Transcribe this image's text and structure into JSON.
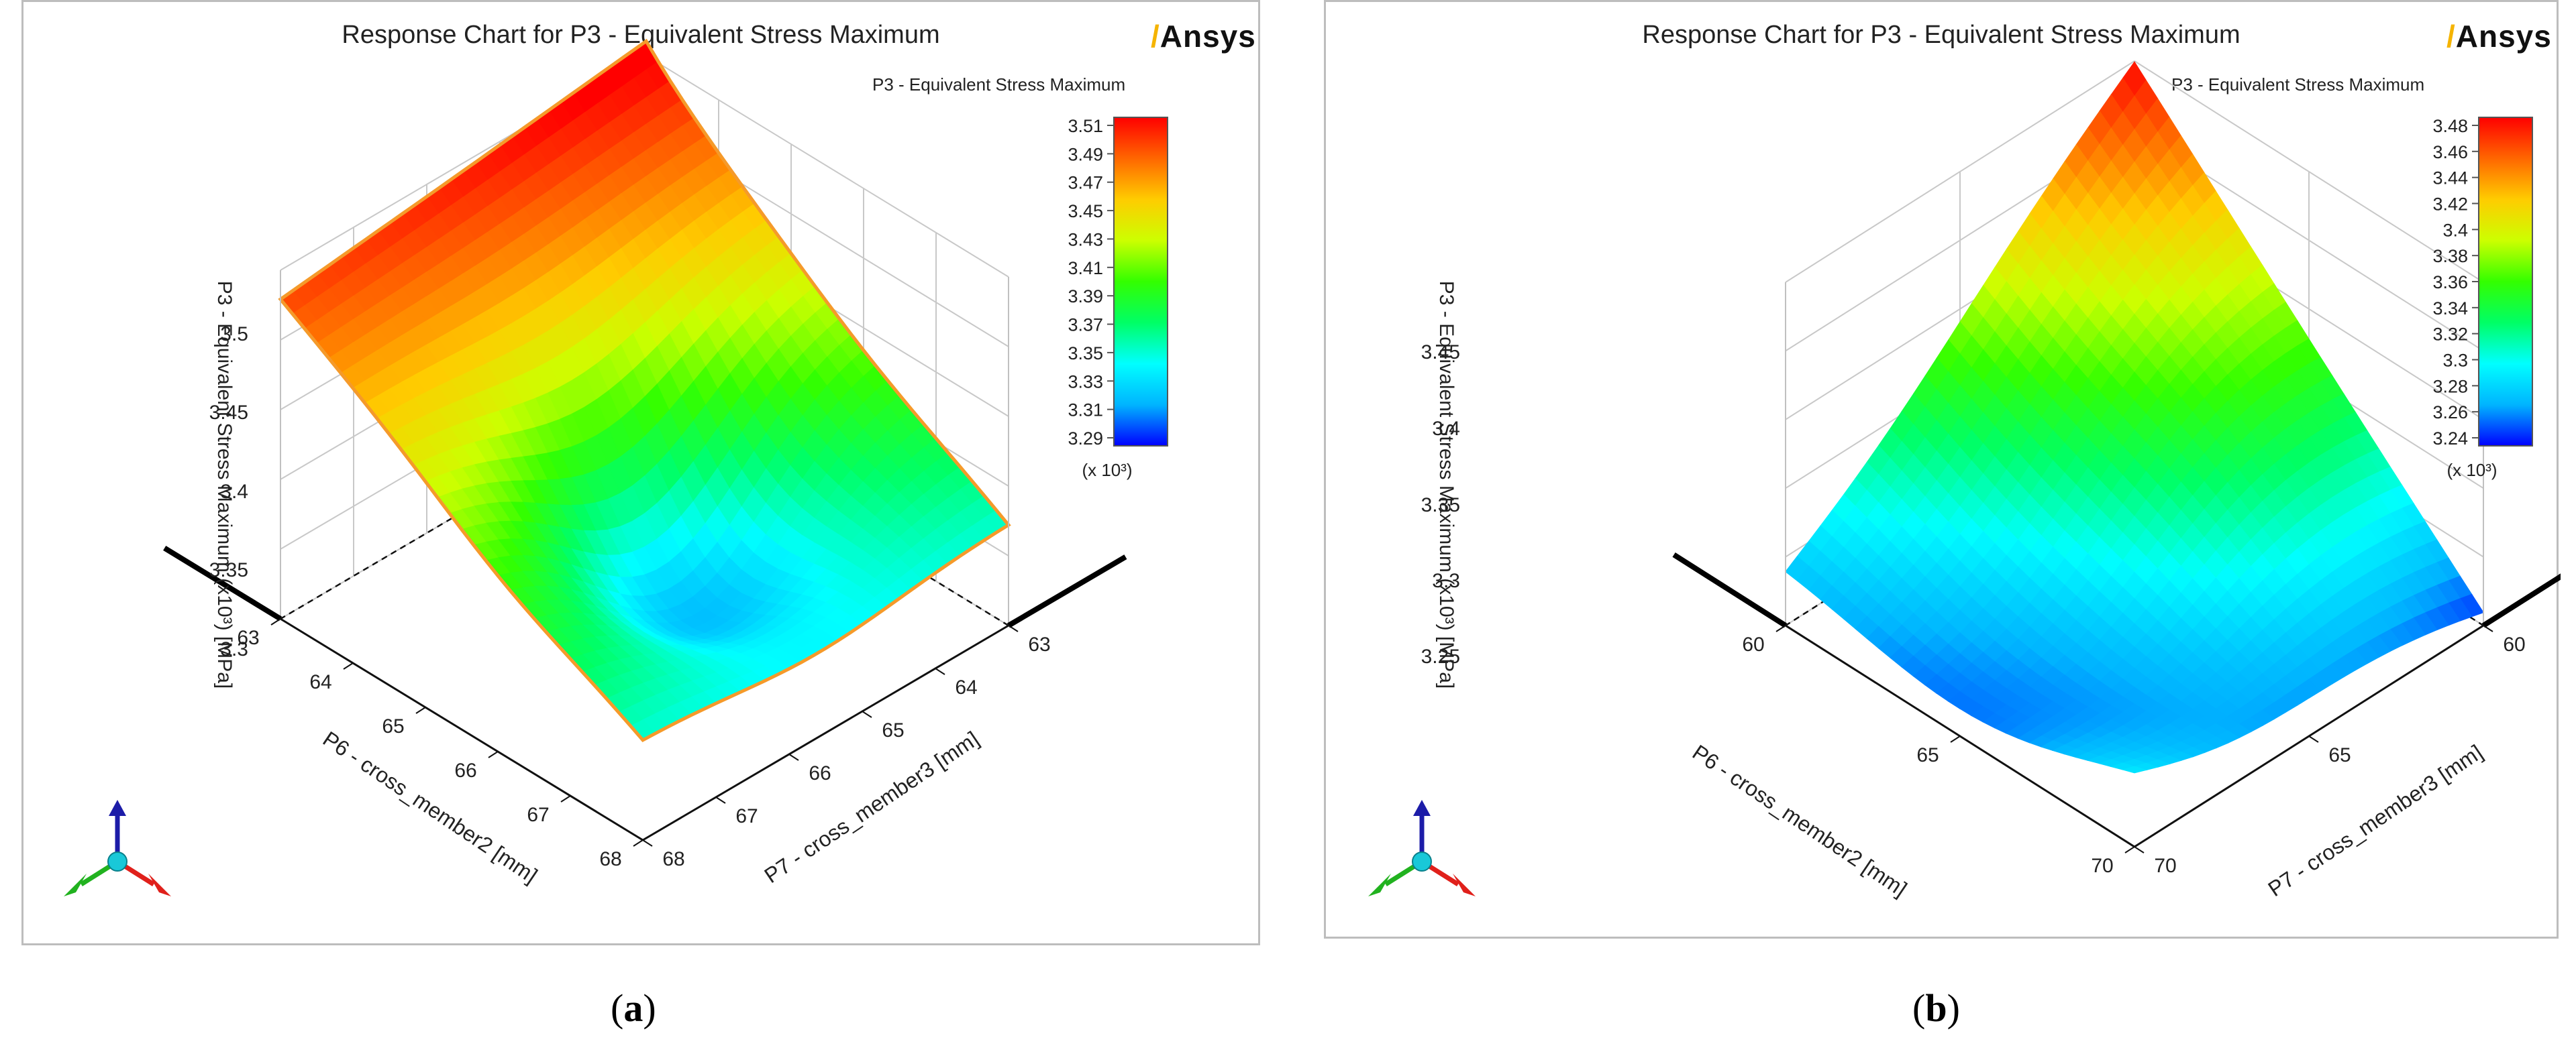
{
  "chart_data": [
    {
      "id": "a",
      "type": "surface",
      "caption_letter": "a",
      "title": "Response Chart for P3 - Equivalent Stress Maximum",
      "logo": "Ansys",
      "colorbar_title": "P3 - Equivalent Stress Maximum",
      "colorbar_ticks": [
        "3.51",
        "3.49",
        "3.47",
        "3.45",
        "3.43",
        "3.41",
        "3.39",
        "3.37",
        "3.35",
        "3.33",
        "3.31",
        "3.29"
      ],
      "colorbar_multiplier": "(x 10³)",
      "zlabel": "P3 - Equivalent Stress Maximum  (x10³)  [MPa]",
      "z_ticks": [
        "3.5",
        "3.45",
        "3.4",
        "3.35",
        "3.3"
      ],
      "xlabel": "P6 - cross_member2  [mm]",
      "x_ticks": [
        "63",
        "64",
        "65",
        "66",
        "67",
        "68"
      ],
      "ylabel": "P7 - cross_member3  [mm]",
      "y_ticks": [
        "63",
        "64",
        "65",
        "66",
        "67",
        "68"
      ],
      "zlim": [
        3.28,
        3.52
      ],
      "surface_corners": {
        "x63_y68": 3.5,
        "x63_y63": 3.51,
        "x68_y63": 3.35,
        "x68_y68": 3.35
      },
      "surface_minimum": 3.29
    },
    {
      "id": "b",
      "type": "surface",
      "caption_letter": "b",
      "title": "Response Chart for P3 - Equivalent Stress Maximum",
      "logo": "Ansys",
      "colorbar_title": "P3 - Equivalent Stress Maximum",
      "colorbar_ticks": [
        "3.48",
        "3.46",
        "3.44",
        "3.42",
        "3.4",
        "3.38",
        "3.36",
        "3.34",
        "3.32",
        "3.3",
        "3.28",
        "3.26",
        "3.24"
      ],
      "colorbar_multiplier": "(x 10³)",
      "zlabel": "P3 - Equivalent Stress Maximum  (x10³)  [MPa]",
      "z_ticks": [
        "3.45",
        "3.4",
        "3.35",
        "3.3",
        "3.25"
      ],
      "xlabel": "P6 - cross_member2  [mm]",
      "x_ticks": [
        "60",
        "65",
        "70"
      ],
      "ylabel": "P7 - cross_member3  [mm]",
      "y_ticks": [
        "60",
        "65",
        "70"
      ],
      "zlim": [
        3.24,
        3.48
      ],
      "surface_corners": {
        "x60_y60": 3.48,
        "x60_y70": 3.29,
        "x70_y60": 3.25,
        "x70_y70": 3.31
      },
      "surface_minimum": 3.24
    }
  ],
  "colors": {
    "colormap": [
      "#0000ff",
      "#00b4ff",
      "#00ffff",
      "#00ff66",
      "#33ff00",
      "#ccff00",
      "#ffcc00",
      "#ff6600",
      "#ff0000"
    ],
    "frame": "#bdbdbd",
    "grid": "#c8c8c8",
    "logo_mark": "#f5b400",
    "triad_x": "#e0201b",
    "triad_y": "#21b21f",
    "triad_z": "#1c1ca8",
    "triad_origin": "#19c8d8"
  }
}
